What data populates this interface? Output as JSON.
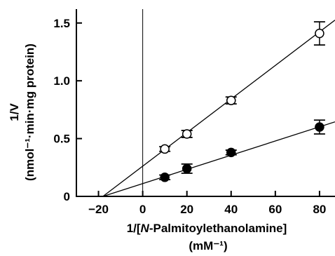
{
  "chart_data": {
    "type": "scatter",
    "ylabel_line1": "1/V",
    "ylabel_line2": "(nmol⁻¹·min·mg protein)",
    "xlabel_prefix": "1/[",
    "xlabel_italic": "N",
    "xlabel_suffix": "-Palmitoylethanolamine]",
    "xlabel_unit": "(mM⁻¹)",
    "xlim": [
      -30,
      87
    ],
    "ylim": [
      0,
      1.62
    ],
    "xticks": [
      -20,
      0,
      20,
      40,
      60,
      80
    ],
    "xtick_labels": [
      "−20",
      "0",
      "20",
      "40",
      "60",
      "80"
    ],
    "yticks": [
      0,
      0.5,
      1.0,
      1.5
    ],
    "ytick_labels": [
      "0",
      "0.5",
      "1.0",
      "1.5"
    ],
    "vertical_line_x": 0,
    "series": [
      {
        "marker": "open-circle",
        "x": [
          10,
          20,
          40,
          80
        ],
        "y": [
          0.41,
          0.54,
          0.83,
          1.41
        ],
        "err": [
          0.02,
          0.03,
          0.03,
          0.1
        ],
        "fit": [
          [
            -18,
            0
          ],
          [
            87,
            1.525
          ]
        ]
      },
      {
        "marker": "filled-circle",
        "x": [
          10,
          20,
          40,
          80
        ],
        "y": [
          0.165,
          0.24,
          0.38,
          0.6
        ],
        "err": [
          0.02,
          0.04,
          0.02,
          0.06
        ],
        "fit": [
          [
            -18,
            0
          ],
          [
            87,
            0.645
          ]
        ]
      }
    ]
  }
}
